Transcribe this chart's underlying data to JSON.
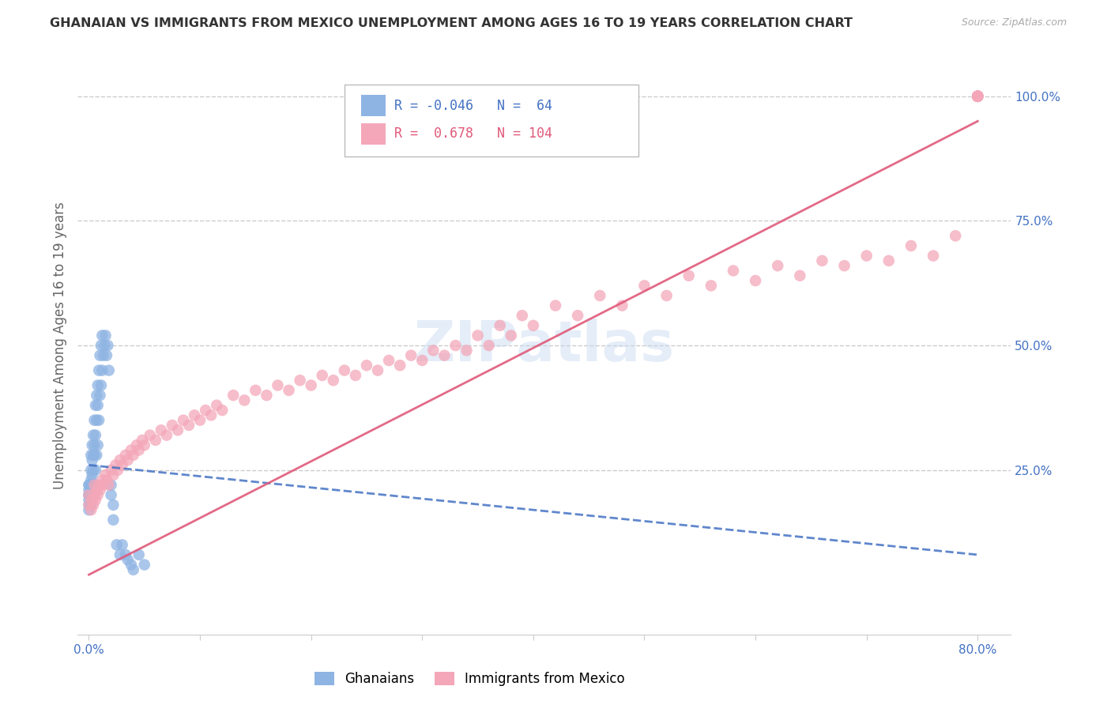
{
  "title": "GHANAIAN VS IMMIGRANTS FROM MEXICO UNEMPLOYMENT AMONG AGES 16 TO 19 YEARS CORRELATION CHART",
  "source": "Source: ZipAtlas.com",
  "ylabel": "Unemployment Among Ages 16 to 19 years",
  "ghanaian_color": "#8eb4e3",
  "mexico_color": "#f4a7b9",
  "ghanaian_line_color": "#4472c4",
  "mexico_line_color": "#e05a7a",
  "ghanaian_R": -0.046,
  "ghanaian_N": 64,
  "mexico_R": 0.678,
  "mexico_N": 104,
  "legend_label_1": "Ghanaians",
  "legend_label_2": "Immigrants from Mexico",
  "watermark": "ZIPatlas",
  "background_color": "#ffffff",
  "grid_color": "#cccccc",
  "title_color": "#333333",
  "right_axis_color": "#4472c4",
  "ghanaian_x": [
    0.0,
    0.0,
    0.0,
    0.0,
    0.0,
    0.0,
    0.0,
    0.0,
    0.002,
    0.002,
    0.002,
    0.002,
    0.002,
    0.002,
    0.003,
    0.003,
    0.003,
    0.003,
    0.003,
    0.004,
    0.004,
    0.004,
    0.004,
    0.004,
    0.005,
    0.005,
    0.005,
    0.005,
    0.006,
    0.006,
    0.006,
    0.007,
    0.007,
    0.007,
    0.008,
    0.008,
    0.008,
    0.009,
    0.009,
    0.01,
    0.01,
    0.011,
    0.011,
    0.012,
    0.012,
    0.013,
    0.014,
    0.015,
    0.016,
    0.017,
    0.018,
    0.02,
    0.02,
    0.022,
    0.022,
    0.025,
    0.028,
    0.03,
    0.033,
    0.035,
    0.038,
    0.04,
    0.045,
    0.05
  ],
  "ghanaian_y": [
    0.2,
    0.22,
    0.18,
    0.2,
    0.17,
    0.19,
    0.22,
    0.21,
    0.25,
    0.22,
    0.28,
    0.2,
    0.18,
    0.23,
    0.3,
    0.27,
    0.24,
    0.22,
    0.2,
    0.32,
    0.28,
    0.25,
    0.22,
    0.2,
    0.35,
    0.3,
    0.28,
    0.22,
    0.38,
    0.32,
    0.25,
    0.4,
    0.35,
    0.28,
    0.42,
    0.38,
    0.3,
    0.45,
    0.35,
    0.48,
    0.4,
    0.5,
    0.42,
    0.52,
    0.45,
    0.48,
    0.5,
    0.52,
    0.48,
    0.5,
    0.45,
    0.22,
    0.2,
    0.18,
    0.15,
    0.1,
    0.08,
    0.1,
    0.08,
    0.07,
    0.06,
    0.05,
    0.08,
    0.06
  ],
  "mexico_x": [
    0.0,
    0.0,
    0.002,
    0.003,
    0.004,
    0.005,
    0.005,
    0.006,
    0.007,
    0.008,
    0.009,
    0.01,
    0.012,
    0.013,
    0.015,
    0.016,
    0.018,
    0.02,
    0.022,
    0.024,
    0.026,
    0.028,
    0.03,
    0.033,
    0.035,
    0.038,
    0.04,
    0.043,
    0.045,
    0.048,
    0.05,
    0.055,
    0.06,
    0.065,
    0.07,
    0.075,
    0.08,
    0.085,
    0.09,
    0.095,
    0.1,
    0.105,
    0.11,
    0.115,
    0.12,
    0.13,
    0.14,
    0.15,
    0.16,
    0.17,
    0.18,
    0.19,
    0.2,
    0.21,
    0.22,
    0.23,
    0.24,
    0.25,
    0.26,
    0.27,
    0.28,
    0.29,
    0.3,
    0.31,
    0.32,
    0.33,
    0.34,
    0.35,
    0.36,
    0.37,
    0.38,
    0.39,
    0.4,
    0.42,
    0.44,
    0.46,
    0.48,
    0.5,
    0.52,
    0.54,
    0.56,
    0.58,
    0.6,
    0.62,
    0.64,
    0.66,
    0.68,
    0.7,
    0.72,
    0.74,
    0.76,
    0.78,
    0.8,
    0.8,
    0.8,
    0.8,
    0.8,
    0.8,
    0.8,
    0.8,
    0.8,
    0.8,
    0.8,
    0.8
  ],
  "mexico_y": [
    0.18,
    0.2,
    0.17,
    0.19,
    0.18,
    0.2,
    0.22,
    0.19,
    0.21,
    0.2,
    0.22,
    0.21,
    0.23,
    0.22,
    0.24,
    0.23,
    0.22,
    0.25,
    0.24,
    0.26,
    0.25,
    0.27,
    0.26,
    0.28,
    0.27,
    0.29,
    0.28,
    0.3,
    0.29,
    0.31,
    0.3,
    0.32,
    0.31,
    0.33,
    0.32,
    0.34,
    0.33,
    0.35,
    0.34,
    0.36,
    0.35,
    0.37,
    0.36,
    0.38,
    0.37,
    0.4,
    0.39,
    0.41,
    0.4,
    0.42,
    0.41,
    0.43,
    0.42,
    0.44,
    0.43,
    0.45,
    0.44,
    0.46,
    0.45,
    0.47,
    0.46,
    0.48,
    0.47,
    0.49,
    0.48,
    0.5,
    0.49,
    0.52,
    0.5,
    0.54,
    0.52,
    0.56,
    0.54,
    0.58,
    0.56,
    0.6,
    0.58,
    0.62,
    0.6,
    0.64,
    0.62,
    0.65,
    0.63,
    0.66,
    0.64,
    0.67,
    0.66,
    0.68,
    0.67,
    0.7,
    0.68,
    0.72,
    1.0,
    1.0,
    1.0,
    1.0,
    1.0,
    1.0,
    1.0,
    1.0,
    1.0,
    1.0,
    1.0,
    1.0
  ],
  "gh_trend_x": [
    0.0,
    0.8
  ],
  "gh_trend_y": [
    0.26,
    0.08
  ],
  "mx_trend_x": [
    0.0,
    0.8
  ],
  "mx_trend_y": [
    0.04,
    0.95
  ],
  "xlim": [
    -0.01,
    0.83
  ],
  "ylim": [
    -0.08,
    1.08
  ],
  "x_ticks": [
    0.0,
    0.1,
    0.2,
    0.3,
    0.4,
    0.5,
    0.6,
    0.7,
    0.8
  ],
  "x_tick_labels": [
    "0.0%",
    "",
    "",
    "",
    "",
    "",
    "",
    "",
    "80.0%"
  ],
  "y_ticks_right": [
    0.25,
    0.5,
    0.75,
    1.0
  ],
  "y_tick_labels_right": [
    "25.0%",
    "50.0%",
    "75.0%",
    "100.0%"
  ]
}
